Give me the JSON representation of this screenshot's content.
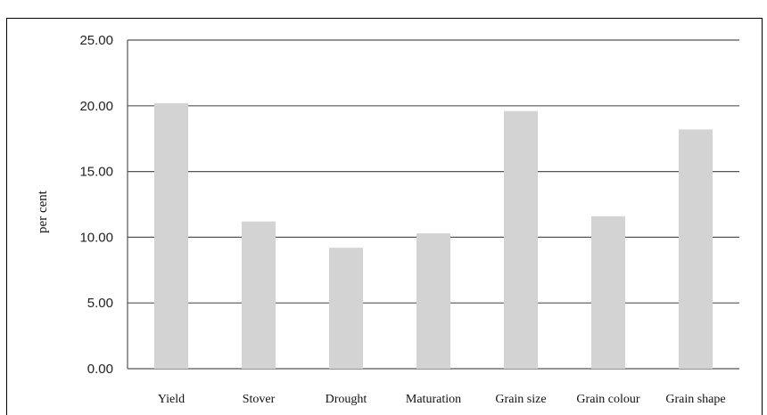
{
  "chart_data": {
    "type": "bar",
    "title": "",
    "xlabel": "",
    "ylabel": "per cent",
    "ylim": [
      0,
      25
    ],
    "yticks": [
      "0.00",
      "5.00",
      "10.00",
      "15.00",
      "20.00",
      "25.00"
    ],
    "grid": true,
    "legend": "none",
    "categories": [
      "Yield",
      "Stover",
      "Drought",
      "Maturation",
      "Grain size",
      "Grain colour",
      "Grain shape"
    ],
    "values": [
      20.2,
      11.2,
      9.2,
      10.3,
      19.6,
      11.6,
      18.2
    ],
    "colors": {
      "bar": "#d3d3d3",
      "grid": "#555555",
      "axis": "#555555"
    }
  }
}
